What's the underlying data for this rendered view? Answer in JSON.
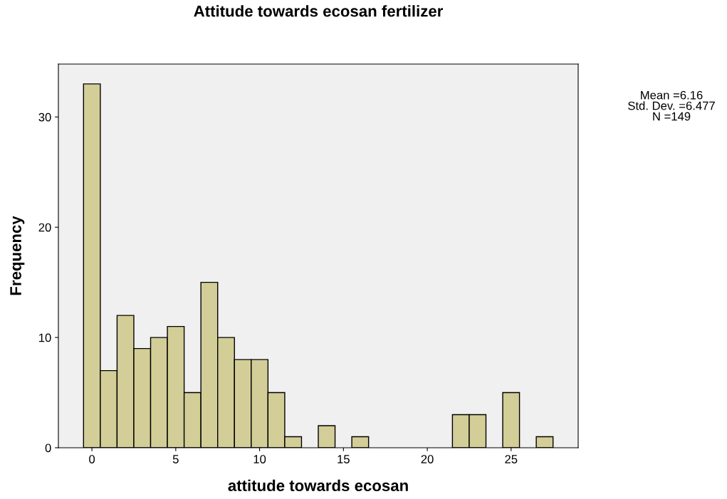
{
  "chart_data": {
    "type": "histogram",
    "title": "Attitude towards ecosan fertilizer",
    "xlabel": "attitude towards ecosan",
    "ylabel": "Frequency",
    "bins": [
      -0.5,
      0.5,
      1.5,
      2.5,
      3.5,
      4.5,
      5.5,
      6.5,
      7.5,
      8.5,
      9.5,
      10.5,
      11.5,
      12.5,
      13.5,
      14.5,
      15.5,
      16.5,
      17.5,
      18.5,
      19.5,
      20.5,
      21.5,
      22.5,
      23.5,
      24.5,
      25.5,
      26.5,
      27.5
    ],
    "values": [
      33,
      7,
      12,
      9,
      10,
      11,
      5,
      15,
      10,
      8,
      8,
      5,
      1,
      0,
      2,
      0,
      1,
      0,
      0,
      0,
      0,
      0,
      3,
      3,
      0,
      5,
      0,
      1
    ],
    "color": "#d3ce97",
    "xlim": [
      -2,
      29
    ],
    "xticks": [
      0,
      5,
      10,
      15,
      20,
      25
    ],
    "ylim": [
      0,
      34.8
    ],
    "yticks": [
      0,
      10,
      20,
      30
    ],
    "grid": false,
    "annotations": [
      "Mean =6.16\nStd. Dev. =6.477\nN =149"
    ]
  }
}
